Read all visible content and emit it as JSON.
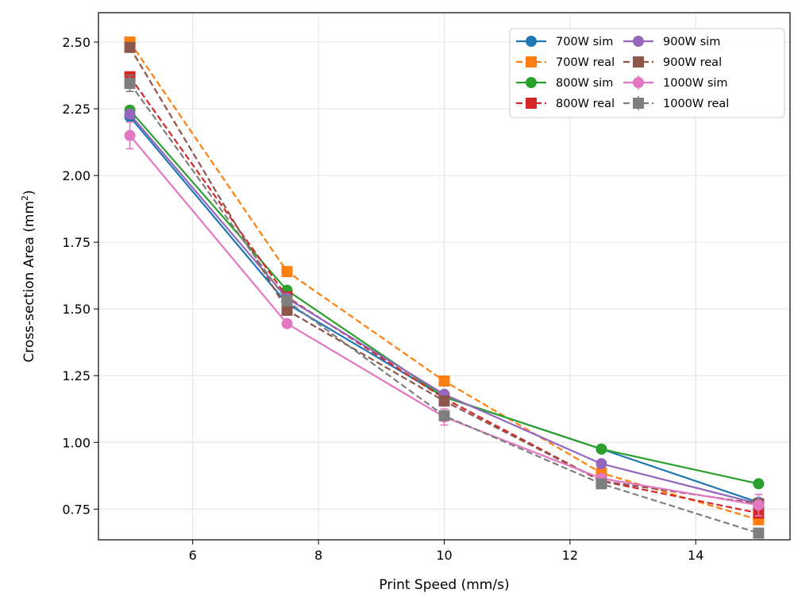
{
  "chart_data": {
    "type": "line",
    "title": "",
    "xlabel": "Print Speed (mm/s)",
    "ylabel_main": "Cross-section Area (mm",
    "ylabel_sup": "2",
    "ylabel_tail": ")",
    "xlim": [
      4.5,
      15.5
    ],
    "ylim": [
      0.635,
      2.61
    ],
    "xticks": [
      6,
      8,
      10,
      12,
      14
    ],
    "yticks": [
      0.75,
      1.0,
      1.25,
      1.5,
      1.75,
      2.0,
      2.25,
      2.5
    ],
    "xtick_labels": [
      "6",
      "8",
      "10",
      "12",
      "14"
    ],
    "ytick_labels": [
      "0.75",
      "1.00",
      "1.25",
      "1.50",
      "1.75",
      "2.00",
      "2.25",
      "2.50"
    ],
    "grid": true,
    "legend_position": "top-right",
    "x": [
      5,
      7.5,
      10,
      12.5,
      15
    ],
    "series": [
      {
        "name": "700W sim",
        "style": "solid",
        "marker": "circle",
        "color": "#1f77b4",
        "values": [
          2.22,
          1.52,
          1.17,
          0.975,
          0.775
        ]
      },
      {
        "name": "700W real",
        "style": "dashed",
        "marker": "square",
        "color": "#ff7f0e",
        "values": [
          2.5,
          1.64,
          1.23,
          0.885,
          0.71
        ]
      },
      {
        "name": "800W sim",
        "style": "solid",
        "marker": "circle",
        "color": "#2ca02c",
        "values": [
          2.245,
          1.57,
          1.17,
          0.975,
          0.845
        ]
      },
      {
        "name": "800W real",
        "style": "dashed",
        "marker": "square",
        "color": "#d62728",
        "values": [
          2.37,
          1.545,
          1.165,
          0.855,
          0.735
        ]
      },
      {
        "name": "900W sim",
        "style": "solid",
        "marker": "circle",
        "color": "#9467bd",
        "values": [
          2.23,
          1.54,
          1.18,
          0.92,
          0.77
        ]
      },
      {
        "name": "900W real",
        "style": "dashed",
        "marker": "square",
        "color": "#8c564b",
        "values": [
          2.48,
          1.495,
          1.155,
          0.855,
          0.77
        ]
      },
      {
        "name": "1000W sim",
        "style": "solid",
        "marker": "circle",
        "color": "#e377c2",
        "values": [
          2.15,
          1.445,
          1.095,
          0.865,
          0.765
        ],
        "errors": [
          0.05,
          0,
          0.03,
          0,
          0.04
        ]
      },
      {
        "name": "1000W real",
        "style": "dashed",
        "marker": "square",
        "color": "#7f7f7f",
        "values": [
          2.345,
          1.53,
          1.1,
          0.845,
          0.66
        ],
        "errors": [
          0.03,
          0,
          0,
          0,
          0
        ]
      }
    ]
  }
}
